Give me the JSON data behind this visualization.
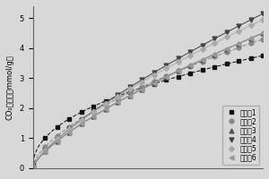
{
  "title": "",
  "ylabel": "CO₂吸附量（mmol/g）",
  "xlabel": "",
  "ylim": [
    0,
    5.4
  ],
  "xlim": [
    0,
    1.0
  ],
  "series": [
    {
      "label": "实施备1",
      "color": "#111111",
      "marker": "s",
      "markersize": 3.5,
      "linestyle": "--",
      "a": 3.75,
      "b": 0.45
    },
    {
      "label": "实施备2",
      "color": "#888888",
      "marker": "o",
      "markersize": 3.5,
      "linestyle": "--",
      "a": 4.3,
      "b": 0.62
    },
    {
      "label": "实施备3",
      "color": "#555555",
      "marker": "^",
      "markersize": 3.5,
      "linestyle": "-",
      "a": 4.5,
      "b": 0.72
    },
    {
      "label": "实施备4",
      "color": "#444444",
      "marker": "v",
      "markersize": 3.5,
      "linestyle": "-",
      "a": 5.15,
      "b": 0.75
    },
    {
      "label": "实施备5",
      "color": "#aaaaaa",
      "marker": "D",
      "markersize": 3.0,
      "linestyle": "-",
      "a": 4.95,
      "b": 0.73
    },
    {
      "label": "实施备6",
      "color": "#999999",
      "marker": "<",
      "markersize": 3.5,
      "linestyle": "-",
      "a": 4.5,
      "b": 0.72
    }
  ],
  "yticks": [
    0,
    1,
    2,
    3,
    4,
    5
  ],
  "legend_fontsize": 5.5,
  "axis_fontsize": 6,
  "tick_fontsize": 6,
  "bg_color": "#d8d8d8",
  "n_markers": 20
}
